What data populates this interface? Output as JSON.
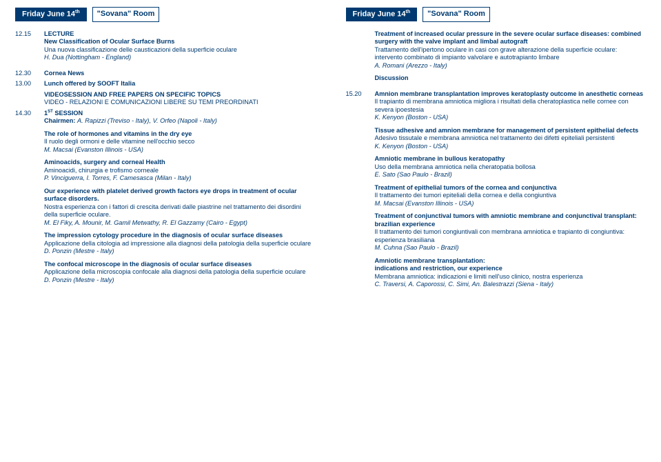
{
  "header": {
    "dateLabelPrefix": "Friday June 14",
    "dateSuffix": "th",
    "roomLabel": "\"Sovana\" Room"
  },
  "left": {
    "t1": "12.15",
    "lectureLabel": "LECTURE",
    "e1_en": "New Classification of Ocular Surface Burns",
    "e1_it": "Una nuova classificazione delle causticazioni della superficie oculare",
    "e1_au": "H. Dua (Nottingham - England)",
    "t2": "12.30",
    "e2": "Cornea News",
    "t3": "13.00",
    "e3": "Lunch offered by SOOFT Italia",
    "vs_en": "VIDEOSESSION AND FREE PAPERS ON SPECIFIC TOPICS",
    "vs_it": "VIDEO - RELAZIONI E COMUNICAZIONI LIBERE SU TEMI PREORDINATI",
    "t4": "14.30",
    "e4": "1",
    "e4s": "ST",
    "e4b": " SESSION",
    "chair_l": "Chairmen: ",
    "chair_v": "A. Rapizzi (Treviso - Italy), V. Orfeo (Napoli - Italy)",
    "p1_en": "The role of hormones and vitamins in the dry eye",
    "p1_it": "Il ruolo degli ormoni e delle vitamine nell'occhio secco",
    "p1_au": "M. Macsai (Evanston Illinois - USA)",
    "p2_en": "Aminoacids, surgery and corneal Health",
    "p2_it": "Aminoacidi, chirurgia e trofismo corneale",
    "p2_au": "P. Vinciguerra, I. Torres, F. Camesasca (Milan - Italy)",
    "p3_en": "Our experience with platelet derived growth factors eye drops in treatment of ocular surface disorders.",
    "p3_it": "Nostra esperienza con i fattori di crescita derivati dalle piastrine nel trattamento dei disordini della superficie oculare.",
    "p3_au": "M. El Fiky, A. Mounir, M. Gamil Metwathy, R. El Gazzamy (Cairo - Egypt)",
    "p4_en": "The impression cytology procedure in the diagnosis of ocular surface diseases",
    "p4_it": "Applicazione della citologia ad impressione alla diagnosi della patologia della superficie oculare",
    "p4_au": "D. Ponzin (Mestre - Italy)",
    "p5_en": "The confocal microscope in the diagnosis of ocular surface diseases",
    "p5_it": "Applicazione della microscopia confocale alla diagnosi della patologia della superficie oculare",
    "p5_au": "D. Ponzin (Mestre - Italy)"
  },
  "right": {
    "r1_en": "Treatment of increased ocular pressure in the severe ocular surface diseases: combined surgery with the valve implant and limbal autograft",
    "r1_it": "Trattamento dell'ipertono oculare in casi con grave alterazione della superficie oculare: intervento combinato di impianto valvolare e autotrapianto limbare",
    "r1_au": "A. Romani (Arezzo - Italy)",
    "disc": "Discussion",
    "t1": "15.20",
    "r2_en": "Amnion membrane transplantation improves keratoplasty outcome in anesthetic corneas",
    "r2_it": "Il trapianto di membrana amniotica migliora i risultati della cheratoplastica nelle cornee con severa ipoestesia",
    "r2_au": "K. Kenyon (Boston - USA)",
    "r3_en": "Tissue adhesive and amnion membrane for management of persistent epithelial defects",
    "r3_it": "Adesivo tissutale e membrana amniotica nel trattamento dei difetti epiteliali persistenti",
    "r3_au": "K. Kenyon (Boston - USA)",
    "r4_en": "Amniotic membrane in bullous keratopathy",
    "r4_it": "Uso della membrana amniotica nella cheratopatia bollosa",
    "r4_au": "E. Sato (Sao Paulo - Brazil)",
    "r5_en": "Treatment of epithelial tumors of the cornea and conjunctiva",
    "r5_it": "Il trattamento dei tumori epiteliali della cornea e della congiuntiva",
    "r5_au": "M. Macsai (Evanston Illinois - USA)",
    "r6_en": "Treatment of conjunctival tumors with amniotic membrane and conjunctival transplant: brazilian experience",
    "r6_it": "Il trattamento dei tumori congiuntivali con membrana amniotica e trapianto di congiuntiva: esperienza brasiliana",
    "r6_au": "M. Cuhna (Sao Paulo - Brazil)",
    "r7_en": "Amniotic membrane transplantation:",
    "r7_en2": "indications and restriction, our experience",
    "r7_it": "Membrana amniotica: indicazioni e limiti nell'uso clinico, nostra esperienza",
    "r7_au": "C. Traversi, A. Caporossi, C. Simi, An. Balestrazzi (Siena - Italy)"
  }
}
